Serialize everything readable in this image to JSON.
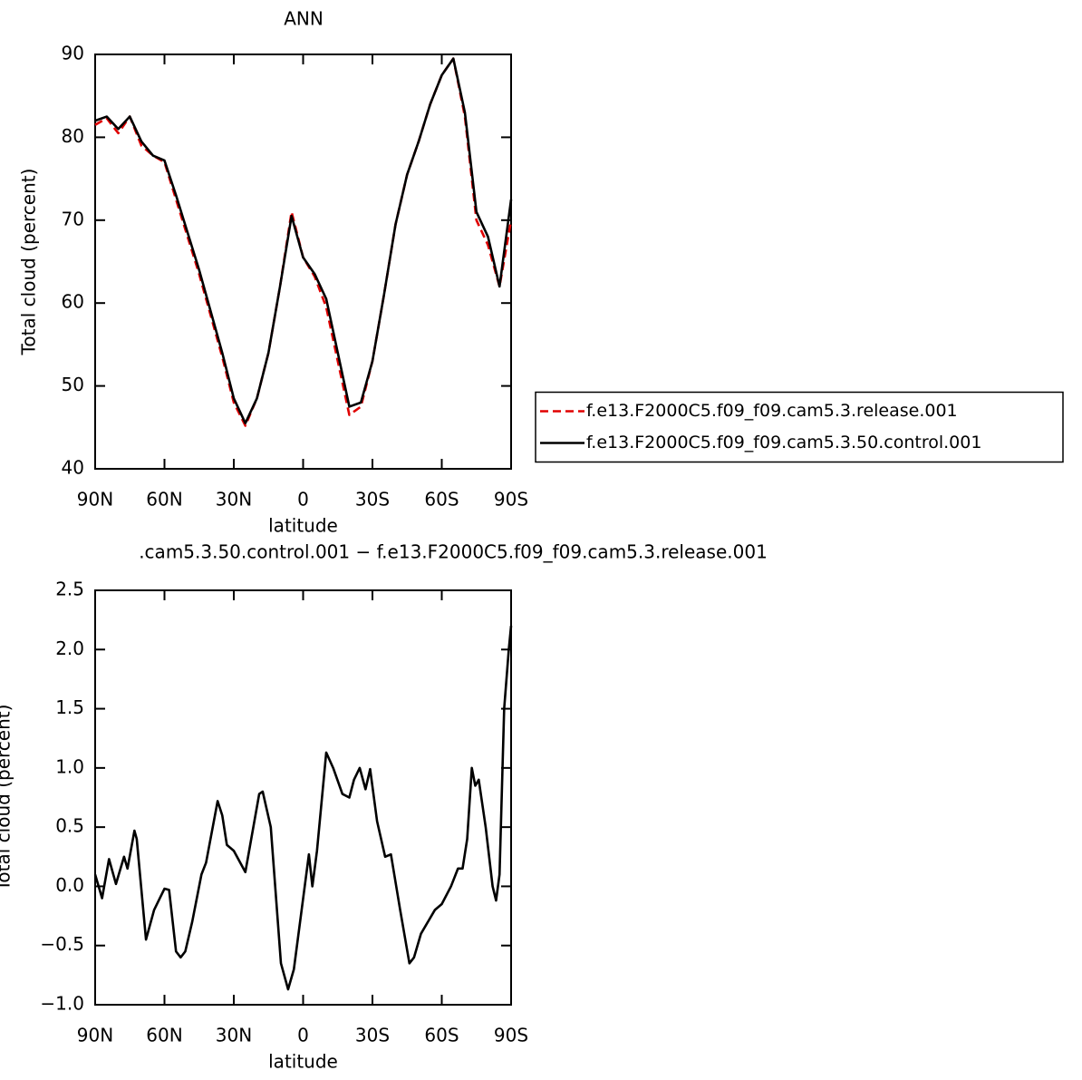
{
  "chart_data": [
    {
      "type": "line",
      "title": "ANN",
      "ylabel": "Total cloud (percent)",
      "xlabel": "latitude",
      "x": [
        90,
        85,
        80,
        75,
        70,
        65,
        60,
        55,
        50,
        45,
        40,
        35,
        30,
        25,
        20,
        15,
        10,
        5,
        0,
        -5,
        -10,
        -15,
        -20,
        -25,
        -30,
        -35,
        -40,
        -45,
        -50,
        -55,
        -60,
        -65,
        -70,
        -75,
        -80,
        -85,
        -90
      ],
      "xlim": [
        90,
        -90
      ],
      "xticks": [
        {
          "value": 90,
          "label": "90N"
        },
        {
          "value": 60,
          "label": "60N"
        },
        {
          "value": 30,
          "label": "30N"
        },
        0,
        {
          "value": -30,
          "label": "30S"
        },
        {
          "value": -60,
          "label": "60S"
        },
        {
          "value": -90,
          "label": "90S"
        }
      ],
      "ylim": [
        40,
        90
      ],
      "yticks": [
        40,
        50,
        60,
        70,
        80,
        90
      ],
      "legend": "right",
      "series": [
        {
          "name": "f.e13.F2000C5.f09_f09.cam5.3.release.001",
          "color": "#e00000",
          "line_style": "dashed",
          "values": [
            81.5,
            82.3,
            80.5,
            82.5,
            79,
            77.8,
            77,
            72.5,
            68,
            63.5,
            58.5,
            53.5,
            48,
            45.2,
            48.5,
            54,
            62,
            71,
            65.5,
            63.2,
            59.5,
            53,
            46.5,
            47.5,
            53,
            61,
            69.5,
            75.5,
            79.5,
            84,
            87.5,
            89.5,
            82.5,
            70,
            67,
            62,
            70
          ]
        },
        {
          "name": "f.e13.F2000C5.f09_f09.cam5.3.50.control.001",
          "color": "#000000",
          "line_style": "solid",
          "values": [
            82,
            82.5,
            81,
            82.5,
            79.5,
            77.8,
            77.2,
            73,
            68.5,
            64,
            59,
            54,
            48.5,
            45.5,
            48.5,
            54,
            62,
            70.5,
            65.5,
            63.5,
            60.5,
            54,
            47.5,
            48,
            53,
            61,
            69.5,
            75.5,
            79.5,
            84,
            87.5,
            89.5,
            83,
            71,
            68,
            62,
            72.5
          ]
        }
      ]
    },
    {
      "type": "line",
      "title": ".cam5.3.50.control.001 − f.e13.F2000C5.f09_f09.cam5.3.release.001",
      "ylabel": "Total cloud (percent)",
      "xlabel": "latitude",
      "x": [
        90,
        87,
        84,
        81,
        77.5,
        76,
        73,
        72,
        68,
        64.5,
        62,
        60,
        58,
        55,
        53,
        51,
        48,
        44,
        42,
        37,
        35,
        33,
        30,
        25,
        19,
        17.5,
        14,
        9.6,
        6.5,
        4,
        -2.5,
        -4,
        -6,
        -10,
        -13,
        -17,
        -20,
        -22,
        -24.5,
        -27,
        -29,
        -32,
        -35.5,
        -38,
        -42,
        -46,
        -48,
        -51,
        -54,
        -57,
        -60,
        -64,
        -67,
        -69,
        -71,
        -73,
        -74.5,
        -76,
        -79,
        -82,
        -83.5,
        -85,
        -87,
        -89,
        -90
      ],
      "xlim": [
        90,
        -90
      ],
      "xticks": [
        {
          "value": 90,
          "label": "90N"
        },
        {
          "value": 60,
          "label": "60N"
        },
        {
          "value": 30,
          "label": "30N"
        },
        0,
        {
          "value": -30,
          "label": "30S"
        },
        {
          "value": -60,
          "label": "60S"
        },
        {
          "value": -90,
          "label": "90S"
        }
      ],
      "ylim": [
        -1.0,
        2.5
      ],
      "yticks": [
        {
          "value": -1.0,
          "label": "−1.0"
        },
        {
          "value": -0.5,
          "label": "−0.5"
        },
        {
          "value": 0,
          "label": "0.0"
        },
        0.5,
        {
          "value": 1.0,
          "label": "1.0"
        },
        1.5,
        {
          "value": 2.0,
          "label": "2.0"
        },
        2.5
      ],
      "series": [
        {
          "color": "#000000",
          "line_style": "solid",
          "values": [
            0.1,
            -0.1,
            0.23,
            0.02,
            0.25,
            0.15,
            0.47,
            0.4,
            -0.45,
            -0.2,
            -0.1,
            -0.02,
            -0.03,
            -0.55,
            -0.6,
            -0.55,
            -0.3,
            0.1,
            0.2,
            0.72,
            0.6,
            0.35,
            0.3,
            0.12,
            0.78,
            0.8,
            0.5,
            -0.65,
            -0.87,
            -0.7,
            0.27,
            0.0,
            0.3,
            1.13,
            1.0,
            0.78,
            0.75,
            0.9,
            1.0,
            0.82,
            0.99,
            0.55,
            0.25,
            0.27,
            -0.2,
            -0.65,
            -0.6,
            -0.4,
            -0.3,
            -0.2,
            -0.15,
            0.0,
            0.15,
            0.15,
            0.4,
            1.0,
            0.85,
            0.9,
            0.5,
            0.0,
            -0.12,
            0.1,
            1.5,
            2.0,
            2.2
          ]
        }
      ]
    }
  ]
}
